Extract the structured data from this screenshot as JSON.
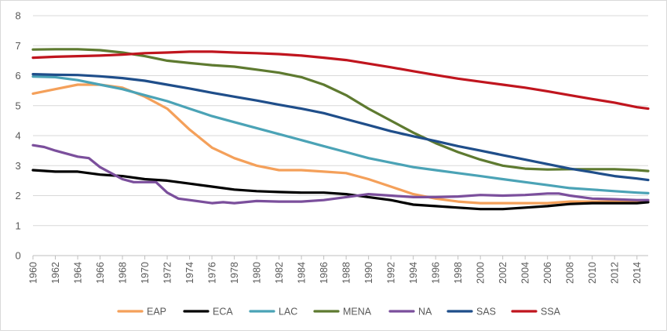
{
  "chart_data": {
    "type": "line",
    "title": "",
    "xlabel": "",
    "ylabel": "",
    "xlim": [
      1960,
      2015
    ],
    "ylim": [
      0,
      8
    ],
    "y_ticks": [
      0,
      1,
      2,
      3,
      4,
      5,
      6,
      7,
      8
    ],
    "x_tick_labels": [
      "1960",
      "1962",
      "1964",
      "1966",
      "1968",
      "1970",
      "1972",
      "1974",
      "1976",
      "1978",
      "1980",
      "1982",
      "1984",
      "1986",
      "1988",
      "1990",
      "1992",
      "1994",
      "1996",
      "1998",
      "2000",
      "2002",
      "2004",
      "2006",
      "2008",
      "2010",
      "2012",
      "2014"
    ],
    "grid": "horizontal",
    "legend_position": "bottom",
    "series": [
      {
        "name": "EAP",
        "color": "#f4a05a",
        "points": [
          [
            1960,
            5.4
          ],
          [
            1962,
            5.55
          ],
          [
            1964,
            5.7
          ],
          [
            1966,
            5.7
          ],
          [
            1968,
            5.6
          ],
          [
            1970,
            5.3
          ],
          [
            1972,
            4.9
          ],
          [
            1974,
            4.2
          ],
          [
            1976,
            3.6
          ],
          [
            1978,
            3.25
          ],
          [
            1980,
            3.0
          ],
          [
            1982,
            2.85
          ],
          [
            1984,
            2.85
          ],
          [
            1986,
            2.8
          ],
          [
            1988,
            2.75
          ],
          [
            1990,
            2.55
          ],
          [
            1992,
            2.3
          ],
          [
            1994,
            2.05
          ],
          [
            1996,
            1.9
          ],
          [
            1998,
            1.8
          ],
          [
            2000,
            1.75
          ],
          [
            2002,
            1.75
          ],
          [
            2004,
            1.75
          ],
          [
            2006,
            1.75
          ],
          [
            2008,
            1.8
          ],
          [
            2010,
            1.8
          ],
          [
            2012,
            1.8
          ],
          [
            2014,
            1.8
          ],
          [
            2015,
            1.8
          ]
        ]
      },
      {
        "name": "ECA",
        "color": "#000000",
        "points": [
          [
            1960,
            2.85
          ],
          [
            1962,
            2.8
          ],
          [
            1964,
            2.8
          ],
          [
            1966,
            2.7
          ],
          [
            1968,
            2.65
          ],
          [
            1970,
            2.55
          ],
          [
            1972,
            2.5
          ],
          [
            1974,
            2.4
          ],
          [
            1976,
            2.3
          ],
          [
            1978,
            2.2
          ],
          [
            1980,
            2.15
          ],
          [
            1982,
            2.12
          ],
          [
            1984,
            2.1
          ],
          [
            1986,
            2.1
          ],
          [
            1988,
            2.05
          ],
          [
            1990,
            1.95
          ],
          [
            1992,
            1.85
          ],
          [
            1994,
            1.7
          ],
          [
            1996,
            1.65
          ],
          [
            1998,
            1.6
          ],
          [
            2000,
            1.55
          ],
          [
            2002,
            1.55
          ],
          [
            2004,
            1.6
          ],
          [
            2006,
            1.65
          ],
          [
            2008,
            1.72
          ],
          [
            2010,
            1.75
          ],
          [
            2012,
            1.75
          ],
          [
            2014,
            1.75
          ],
          [
            2015,
            1.78
          ]
        ]
      },
      {
        "name": "LAC",
        "color": "#4ba3b6",
        "points": [
          [
            1960,
            5.97
          ],
          [
            1962,
            5.95
          ],
          [
            1964,
            5.85
          ],
          [
            1966,
            5.7
          ],
          [
            1968,
            5.55
          ],
          [
            1970,
            5.35
          ],
          [
            1972,
            5.15
          ],
          [
            1974,
            4.9
          ],
          [
            1976,
            4.65
          ],
          [
            1978,
            4.45
          ],
          [
            1980,
            4.25
          ],
          [
            1982,
            4.05
          ],
          [
            1984,
            3.85
          ],
          [
            1986,
            3.65
          ],
          [
            1988,
            3.45
          ],
          [
            1990,
            3.25
          ],
          [
            1992,
            3.1
          ],
          [
            1994,
            2.95
          ],
          [
            1996,
            2.85
          ],
          [
            1998,
            2.75
          ],
          [
            2000,
            2.65
          ],
          [
            2002,
            2.55
          ],
          [
            2004,
            2.45
          ],
          [
            2006,
            2.35
          ],
          [
            2008,
            2.25
          ],
          [
            2010,
            2.2
          ],
          [
            2012,
            2.15
          ],
          [
            2014,
            2.1
          ],
          [
            2015,
            2.08
          ]
        ]
      },
      {
        "name": "MENA",
        "color": "#5e7a30",
        "points": [
          [
            1960,
            6.87
          ],
          [
            1962,
            6.88
          ],
          [
            1964,
            6.88
          ],
          [
            1966,
            6.85
          ],
          [
            1968,
            6.77
          ],
          [
            1970,
            6.65
          ],
          [
            1972,
            6.5
          ],
          [
            1974,
            6.42
          ],
          [
            1976,
            6.35
          ],
          [
            1978,
            6.3
          ],
          [
            1980,
            6.2
          ],
          [
            1982,
            6.1
          ],
          [
            1984,
            5.95
          ],
          [
            1986,
            5.7
          ],
          [
            1988,
            5.35
          ],
          [
            1990,
            4.9
          ],
          [
            1992,
            4.5
          ],
          [
            1994,
            4.1
          ],
          [
            1996,
            3.75
          ],
          [
            1998,
            3.45
          ],
          [
            2000,
            3.2
          ],
          [
            2002,
            3.0
          ],
          [
            2004,
            2.9
          ],
          [
            2006,
            2.87
          ],
          [
            2008,
            2.88
          ],
          [
            2010,
            2.88
          ],
          [
            2012,
            2.88
          ],
          [
            2014,
            2.85
          ],
          [
            2015,
            2.82
          ]
        ]
      },
      {
        "name": "NA",
        "color": "#7b4f9c",
        "points": [
          [
            1960,
            3.68
          ],
          [
            1961,
            3.62
          ],
          [
            1962,
            3.5
          ],
          [
            1964,
            3.3
          ],
          [
            1965,
            3.25
          ],
          [
            1966,
            2.95
          ],
          [
            1968,
            2.55
          ],
          [
            1969,
            2.45
          ],
          [
            1970,
            2.45
          ],
          [
            1971,
            2.45
          ],
          [
            1972,
            2.1
          ],
          [
            1973,
            1.9
          ],
          [
            1974,
            1.85
          ],
          [
            1976,
            1.75
          ],
          [
            1977,
            1.78
          ],
          [
            1978,
            1.75
          ],
          [
            1980,
            1.82
          ],
          [
            1982,
            1.8
          ],
          [
            1984,
            1.8
          ],
          [
            1986,
            1.85
          ],
          [
            1988,
            1.95
          ],
          [
            1990,
            2.05
          ],
          [
            1992,
            2.0
          ],
          [
            1994,
            1.95
          ],
          [
            1996,
            1.95
          ],
          [
            1998,
            1.97
          ],
          [
            2000,
            2.02
          ],
          [
            2002,
            2.0
          ],
          [
            2004,
            2.02
          ],
          [
            2006,
            2.07
          ],
          [
            2007,
            2.07
          ],
          [
            2008,
            2.0
          ],
          [
            2010,
            1.9
          ],
          [
            2012,
            1.88
          ],
          [
            2014,
            1.85
          ],
          [
            2015,
            1.85
          ]
        ]
      },
      {
        "name": "SAS",
        "color": "#1f4e8a",
        "points": [
          [
            1960,
            6.05
          ],
          [
            1962,
            6.03
          ],
          [
            1964,
            6.02
          ],
          [
            1966,
            5.98
          ],
          [
            1968,
            5.92
          ],
          [
            1970,
            5.83
          ],
          [
            1972,
            5.7
          ],
          [
            1974,
            5.57
          ],
          [
            1976,
            5.43
          ],
          [
            1978,
            5.3
          ],
          [
            1980,
            5.17
          ],
          [
            1982,
            5.03
          ],
          [
            1984,
            4.9
          ],
          [
            1986,
            4.75
          ],
          [
            1988,
            4.55
          ],
          [
            1990,
            4.35
          ],
          [
            1992,
            4.15
          ],
          [
            1994,
            3.98
          ],
          [
            1996,
            3.82
          ],
          [
            1998,
            3.65
          ],
          [
            2000,
            3.5
          ],
          [
            2002,
            3.35
          ],
          [
            2004,
            3.2
          ],
          [
            2006,
            3.05
          ],
          [
            2008,
            2.9
          ],
          [
            2010,
            2.78
          ],
          [
            2012,
            2.65
          ],
          [
            2014,
            2.57
          ],
          [
            2015,
            2.52
          ]
        ]
      },
      {
        "name": "SSA",
        "color": "#c0151e",
        "points": [
          [
            1960,
            6.6
          ],
          [
            1962,
            6.63
          ],
          [
            1964,
            6.65
          ],
          [
            1966,
            6.67
          ],
          [
            1968,
            6.7
          ],
          [
            1970,
            6.75
          ],
          [
            1972,
            6.77
          ],
          [
            1974,
            6.8
          ],
          [
            1976,
            6.8
          ],
          [
            1978,
            6.77
          ],
          [
            1980,
            6.75
          ],
          [
            1982,
            6.72
          ],
          [
            1984,
            6.67
          ],
          [
            1986,
            6.6
          ],
          [
            1988,
            6.52
          ],
          [
            1990,
            6.4
          ],
          [
            1992,
            6.28
          ],
          [
            1994,
            6.15
          ],
          [
            1996,
            6.02
          ],
          [
            1998,
            5.9
          ],
          [
            2000,
            5.8
          ],
          [
            2002,
            5.7
          ],
          [
            2004,
            5.6
          ],
          [
            2006,
            5.48
          ],
          [
            2008,
            5.35
          ],
          [
            2010,
            5.22
          ],
          [
            2012,
            5.1
          ],
          [
            2014,
            4.95
          ],
          [
            2015,
            4.9
          ]
        ]
      }
    ]
  }
}
